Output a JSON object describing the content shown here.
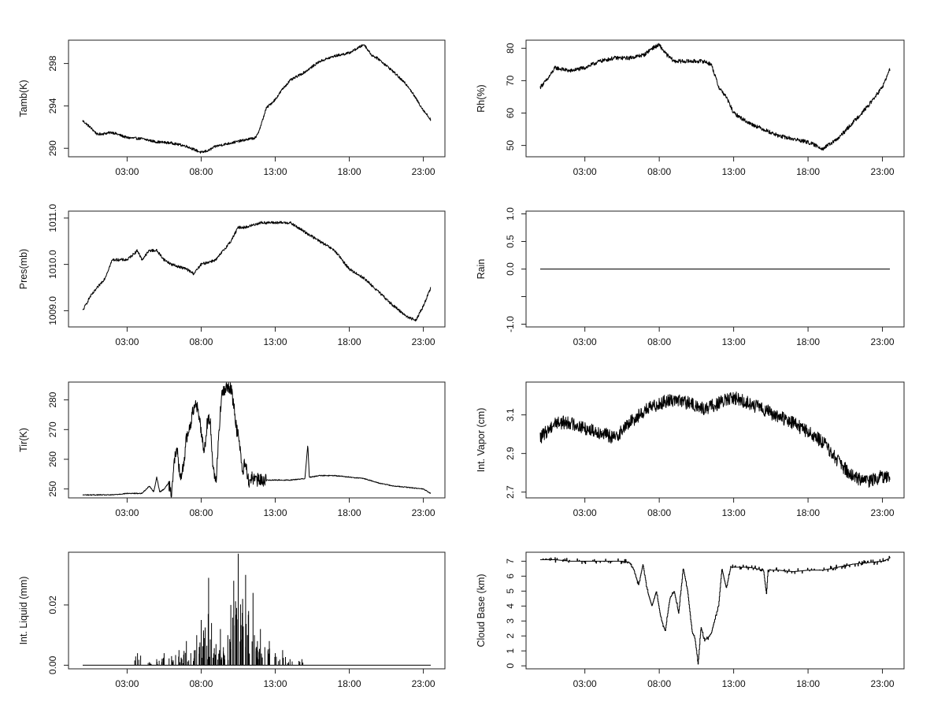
{
  "chart_data": [
    {
      "type": "line",
      "panel": "tamb",
      "ylabel": "Tamb(K)",
      "xticks": [
        "03:00",
        "08:00",
        "13:00",
        "18:00",
        "23:00"
      ],
      "xlim": [
        0,
        24
      ],
      "ylim": [
        289.2,
        300.2
      ],
      "yticks": [
        290,
        294,
        298
      ],
      "ytick_labels": [
        "290",
        "294",
        "298"
      ],
      "noise": 0.12,
      "series": [
        {
          "x": [
            0,
            0.5,
            1,
            2,
            3,
            4,
            5,
            6,
            7,
            7.5,
            8,
            8.5,
            9,
            10,
            11,
            11.7,
            12,
            12.4,
            13,
            13.5,
            14,
            15,
            16,
            17,
            18,
            18.5,
            19,
            19.5,
            20,
            21,
            22,
            22.5,
            23,
            23.5
          ],
          "values": [
            292.6,
            292.0,
            291.3,
            291.5,
            291.0,
            290.9,
            290.6,
            290.5,
            290.2,
            289.9,
            289.6,
            289.8,
            290.2,
            290.5,
            290.8,
            291.0,
            292.0,
            293.8,
            294.6,
            295.6,
            296.4,
            297.2,
            298.2,
            298.7,
            299.0,
            299.4,
            299.8,
            298.8,
            298.4,
            297.2,
            295.8,
            294.7,
            293.6,
            292.7
          ]
        }
      ]
    },
    {
      "type": "line",
      "panel": "rh",
      "ylabel": "Rh(%)",
      "xticks": [
        "03:00",
        "08:00",
        "13:00",
        "18:00",
        "23:00"
      ],
      "xlim": [
        0,
        24
      ],
      "ylim": [
        46.5,
        82.5
      ],
      "yticks": [
        50,
        60,
        70,
        80
      ],
      "ytick_labels": [
        "50",
        "60",
        "70",
        "80"
      ],
      "noise": 0.6,
      "series": [
        {
          "x": [
            0,
            0.5,
            1,
            2,
            3,
            4,
            5,
            6,
            7,
            7.5,
            8,
            8.5,
            9,
            10,
            11,
            11.5,
            12,
            12.5,
            13,
            14,
            15,
            16,
            17,
            18,
            19,
            20,
            21,
            22,
            23,
            23.5
          ],
          "values": [
            68,
            70.5,
            74,
            73,
            74,
            76,
            77,
            77,
            78,
            80,
            81,
            78,
            76,
            76,
            76,
            75,
            68,
            65,
            60,
            57,
            55,
            53,
            52,
            51,
            49,
            52,
            57,
            62,
            68,
            73.5
          ]
        }
      ]
    },
    {
      "type": "line",
      "panel": "pres",
      "ylabel": "Pres(mb)",
      "xticks": [
        "03:00",
        "08:00",
        "13:00",
        "18:00",
        "23:00"
      ],
      "xlim": [
        0,
        24
      ],
      "ylim": [
        1008.65,
        1011.15
      ],
      "yticks": [
        1009.0,
        1010.0,
        1011.0
      ],
      "ytick_labels": [
        "1009.0",
        "1010.0",
        "1011.0"
      ],
      "noise": 0.03,
      "series": [
        {
          "x": [
            0,
            0.5,
            1,
            1.5,
            2,
            3,
            3.7,
            4,
            4.5,
            5,
            5.5,
            6,
            7,
            7.5,
            8,
            9,
            10,
            10.5,
            11,
            12,
            13,
            14,
            15,
            16,
            17,
            18,
            19,
            20,
            21,
            22,
            22.5,
            23,
            23.5
          ],
          "values": [
            1009.0,
            1009.3,
            1009.5,
            1009.7,
            1010.1,
            1010.1,
            1010.3,
            1010.1,
            1010.3,
            1010.3,
            1010.1,
            1010.0,
            1009.9,
            1009.8,
            1010.0,
            1010.1,
            1010.5,
            1010.8,
            1010.8,
            1010.9,
            1010.9,
            1010.9,
            1010.7,
            1010.5,
            1010.3,
            1009.9,
            1009.7,
            1009.4,
            1009.1,
            1008.85,
            1008.8,
            1009.1,
            1009.5
          ]
        }
      ]
    },
    {
      "type": "line",
      "panel": "rain",
      "ylabel": "Rain",
      "xticks": [
        "03:00",
        "08:00",
        "13:00",
        "18:00",
        "23:00"
      ],
      "xlim": [
        0,
        24
      ],
      "ylim": [
        -1.05,
        1.05
      ],
      "yticks": [
        -1.0,
        -0.5,
        0.0,
        0.5,
        1.0
      ],
      "ytick_labels": [
        "-1.0",
        "",
        "0.0",
        "0.5",
        "1.0"
      ],
      "noise": 0,
      "series": [
        {
          "x": [
            0,
            23.5
          ],
          "values": [
            0,
            0
          ]
        }
      ]
    },
    {
      "type": "line",
      "panel": "tir",
      "ylabel": "Tir(K)",
      "xticks": [
        "03:00",
        "08:00",
        "13:00",
        "18:00",
        "23:00"
      ],
      "xlim": [
        0,
        24
      ],
      "ylim": [
        247,
        286
      ],
      "yticks": [
        250,
        260,
        270,
        280
      ],
      "ytick_labels": [
        "250",
        "260",
        "270",
        "280"
      ],
      "noise": 0,
      "series": [
        {
          "x": [
            0,
            1,
            2,
            3,
            4,
            4.5,
            4.8,
            5,
            5.2,
            5.5,
            5.8,
            6,
            6.2,
            6.4,
            6.6,
            6.8,
            7,
            7.2,
            7.4,
            7.6,
            7.8,
            8,
            8.2,
            8.4,
            8.6,
            8.8,
            9,
            9.2,
            9.4,
            9.6,
            9.8,
            10,
            10.2,
            10.4,
            10.6,
            10.8,
            11,
            11.2,
            11.4,
            11.6,
            11.8,
            12,
            12.2,
            12.5,
            12.8,
            13,
            14,
            15,
            15.2,
            15.3,
            15.4,
            16,
            17,
            18,
            19,
            20,
            21,
            22,
            23,
            23.5
          ],
          "values": [
            248,
            248,
            248,
            248.5,
            248.5,
            251,
            249,
            254,
            249,
            250,
            252,
            249,
            260,
            263,
            252,
            258,
            267,
            270,
            275,
            280,
            276,
            270,
            262,
            272,
            274,
            258,
            252,
            270,
            282,
            283,
            285,
            284,
            278,
            270,
            266,
            255,
            260,
            252,
            254,
            253,
            253,
            253,
            253,
            253,
            253,
            253,
            253,
            253.5,
            265,
            254,
            254,
            254.5,
            254.5,
            254,
            253.5,
            252,
            251,
            250.5,
            250,
            248.5
          ]
        }
      ]
    },
    {
      "type": "line",
      "panel": "vapor",
      "ylabel": "Int. Vapor (cm)",
      "xticks": [
        "03:00",
        "08:00",
        "13:00",
        "18:00",
        "23:00"
      ],
      "xlim": [
        0,
        24
      ],
      "ylim": [
        2.67,
        3.27
      ],
      "yticks": [
        2.7,
        2.9,
        3.1
      ],
      "ytick_labels": [
        "2.7",
        "2.9",
        "3.1"
      ],
      "noise": 0.035,
      "series": [
        {
          "x": [
            0,
            0.5,
            1,
            2,
            3,
            4,
            5,
            6,
            7,
            8,
            9,
            10,
            11,
            12,
            13,
            14,
            15,
            16,
            17,
            18,
            19,
            20,
            21,
            22,
            22.5,
            23,
            23.5
          ],
          "values": [
            2.98,
            3.02,
            3.06,
            3.06,
            3.03,
            3.01,
            2.98,
            3.06,
            3.12,
            3.16,
            3.18,
            3.16,
            3.13,
            3.16,
            3.19,
            3.16,
            3.13,
            3.09,
            3.06,
            3.01,
            2.96,
            2.86,
            2.78,
            2.75,
            2.77,
            2.78,
            2.78
          ]
        }
      ]
    },
    {
      "type": "line",
      "panel": "liquid",
      "ylabel": "Int. Liquid (mm)",
      "xticks": [
        "03:00",
        "08:00",
        "13:00",
        "18:00",
        "23:00"
      ],
      "xlim": [
        0,
        24
      ],
      "ylim": [
        -0.0012,
        0.0375
      ],
      "yticks": [
        0.0,
        0.02
      ],
      "ytick_labels": [
        "0.00",
        "0.02"
      ],
      "noise": 0,
      "series": [
        {
          "x": [
            3.7,
            4.5,
            5.0,
            5.5,
            6.0,
            6.5,
            6.7,
            7.0,
            7.3,
            7.7,
            8.0,
            8.2,
            8.5,
            8.7,
            9.0,
            9.3,
            9.5,
            9.8,
            10.0,
            10.2,
            10.5,
            10.8,
            11.0,
            11.2,
            11.5,
            11.8,
            12.0,
            12.3,
            12.6,
            13.0,
            13.5,
            14.0,
            14.8
          ],
          "values": [
            0.004,
            0.001,
            0.002,
            0.004,
            0.003,
            0.005,
            0.002,
            0.008,
            0.004,
            0.01,
            0.015,
            0.009,
            0.029,
            0.014,
            0.007,
            0.012,
            0.006,
            0.01,
            0.02,
            0.028,
            0.037,
            0.022,
            0.03,
            0.018,
            0.024,
            0.008,
            0.012,
            0.006,
            0.008,
            0.004,
            0.005,
            0.002,
            0.002
          ]
        }
      ]
    },
    {
      "type": "line",
      "panel": "cloudbase",
      "ylabel": "Cloud Base (km)",
      "xticks": [
        "03:00",
        "08:00",
        "13:00",
        "18:00",
        "23:00"
      ],
      "xlim": [
        0,
        24
      ],
      "ylim": [
        -0.2,
        7.6
      ],
      "yticks": [
        0,
        1,
        2,
        3,
        4,
        5,
        6,
        7
      ],
      "ytick_labels": [
        "0",
        "1",
        "2",
        "3",
        "4",
        "5",
        "6",
        "7"
      ],
      "noise": 0,
      "series": [
        {
          "x": [
            0,
            1,
            2,
            3,
            4,
            5,
            5.5,
            6,
            6.3,
            6.6,
            6.9,
            7.2,
            7.5,
            7.8,
            8.1,
            8.4,
            8.7,
            9.0,
            9.3,
            9.6,
            9.9,
            10.2,
            10.4,
            10.6,
            10.8,
            11.0,
            11.2,
            11.5,
            11.7,
            12.0,
            12.2,
            12.5,
            12.8,
            13.0,
            14,
            15,
            15.2,
            15.3,
            16,
            17,
            18,
            19,
            20,
            21,
            22,
            23,
            23.5
          ],
          "values": [
            7.1,
            7.1,
            7.0,
            7.0,
            7.0,
            7.0,
            7.0,
            6.9,
            6.4,
            5.4,
            6.8,
            5.0,
            4.0,
            5.0,
            3.2,
            2.3,
            4.5,
            5.0,
            3.5,
            6.6,
            5.0,
            2.3,
            1.8,
            0.1,
            2.6,
            1.8,
            1.8,
            2.2,
            3.0,
            4.2,
            6.5,
            5.2,
            6.6,
            6.6,
            6.6,
            6.4,
            4.8,
            6.4,
            6.4,
            6.3,
            6.4,
            6.4,
            6.6,
            6.8,
            6.9,
            7.0,
            7.2
          ]
        }
      ]
    }
  ]
}
